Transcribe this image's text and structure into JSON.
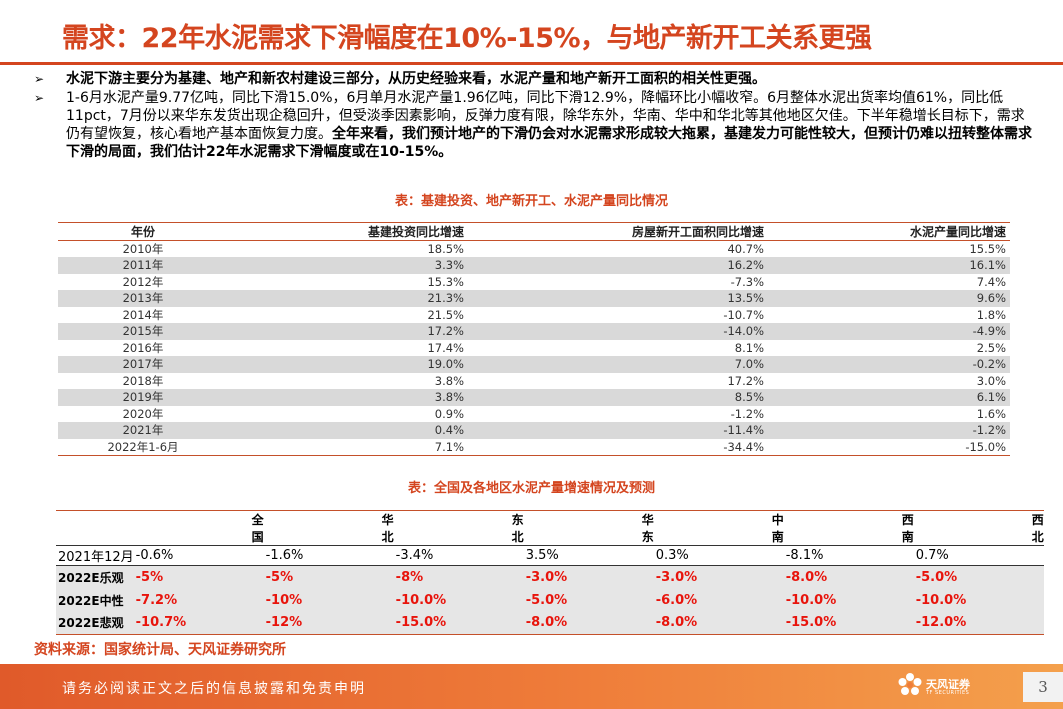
{
  "page": {
    "title": "需求：22年水泥需求下滑幅度在10%-15%，与地产新开工关系更强",
    "bullets": [
      {
        "bold": "水泥下游主要分为基建、地产和新农村建设三部分，从历史经验来看，水泥产量和地产新开工面积的相关性更强。",
        "normal": ""
      },
      {
        "normal": "1-6月水泥产量9.77亿吨，同比下滑15.0%，6月单月水泥产量1.96亿吨，同比下滑12.9%，降幅环比小幅收窄。6月整体水泥出货率均值61%，同比低11pct，7月份以来华东发货出现企稳回升，但受淡季因素影响，反弹力度有限，除华东外，华南、华中和华北等其他地区欠佳。下半年稳增长目标下，需求仍有望恢复，核心看地产基本面恢复力度。",
        "bold": "全年来看，我们预计地产的下滑仍会对水泥需求形成较大拖累，基建发力可能性较大，但预计仍难以扭转整体需求下滑的局面，我们估计22年水泥需求下滑幅度或在10-15%。"
      }
    ],
    "source": "资料来源：国家统计局、天风证券研究所",
    "footer": {
      "disclaimer": "请务必阅读正文之后的信息披露和免责申明",
      "logo_name": "天风证券",
      "logo_en": "TF SECURITIES",
      "page_number": "3"
    }
  },
  "table1": {
    "title": "表：基建投资、地产新开工、水泥产量同比情况",
    "headers": [
      "年份",
      "基建投资同比增速",
      "房屋新开工面积同比增速",
      "水泥产量同比增速"
    ],
    "rows": [
      [
        "2010年",
        "18.5%",
        "40.7%",
        "15.5%"
      ],
      [
        "2011年",
        "3.3%",
        "16.2%",
        "16.1%"
      ],
      [
        "2012年",
        "15.3%",
        "-7.3%",
        "7.4%"
      ],
      [
        "2013年",
        "21.3%",
        "13.5%",
        "9.6%"
      ],
      [
        "2014年",
        "21.5%",
        "-10.7%",
        "1.8%"
      ],
      [
        "2015年",
        "17.2%",
        "-14.0%",
        "-4.9%"
      ],
      [
        "2016年",
        "17.4%",
        "8.1%",
        "2.5%"
      ],
      [
        "2017年",
        "19.0%",
        "7.0%",
        "-0.2%"
      ],
      [
        "2018年",
        "3.8%",
        "17.2%",
        "3.0%"
      ],
      [
        "2019年",
        "3.8%",
        "8.5%",
        "6.1%"
      ],
      [
        "2020年",
        "0.9%",
        "-1.2%",
        "1.6%"
      ],
      [
        "2021年",
        "0.4%",
        "-11.4%",
        "-1.2%"
      ],
      [
        "2022年1-6月",
        "7.1%",
        "-34.4%",
        "-15.0%"
      ]
    ]
  },
  "table2": {
    "title": "表：全国及各地区水泥产量增速情况及预测",
    "headers": [
      "",
      "全国",
      "华北",
      "东北",
      "华东",
      "中南",
      "西南",
      "西北"
    ],
    "rows": [
      {
        "label": "2021年12月",
        "values": [
          "-0.6%",
          "-1.6%",
          "-3.4%",
          "3.5%",
          "0.3%",
          "-8.1%",
          "0.7%"
        ],
        "forecast": false
      },
      {
        "label": "2022E乐观",
        "values": [
          "-5%",
          "-5%",
          "-8%",
          "-3.0%",
          "-3.0%",
          "-8.0%",
          "-5.0%"
        ],
        "forecast": true
      },
      {
        "label": "2022E中性",
        "values": [
          "-7.2%",
          "-10%",
          "-10.0%",
          "-5.0%",
          "-6.0%",
          "-10.0%",
          "-10.0%"
        ],
        "forecast": true
      },
      {
        "label": "2022E悲观",
        "values": [
          "-10.7%",
          "-12%",
          "-15.0%",
          "-8.0%",
          "-8.0%",
          "-15.0%",
          "-12.0%"
        ],
        "forecast": true
      }
    ]
  },
  "colors": {
    "accent": "#d4451f",
    "forecast_value": "#e8140c",
    "stripe": "#d9d9d9"
  }
}
